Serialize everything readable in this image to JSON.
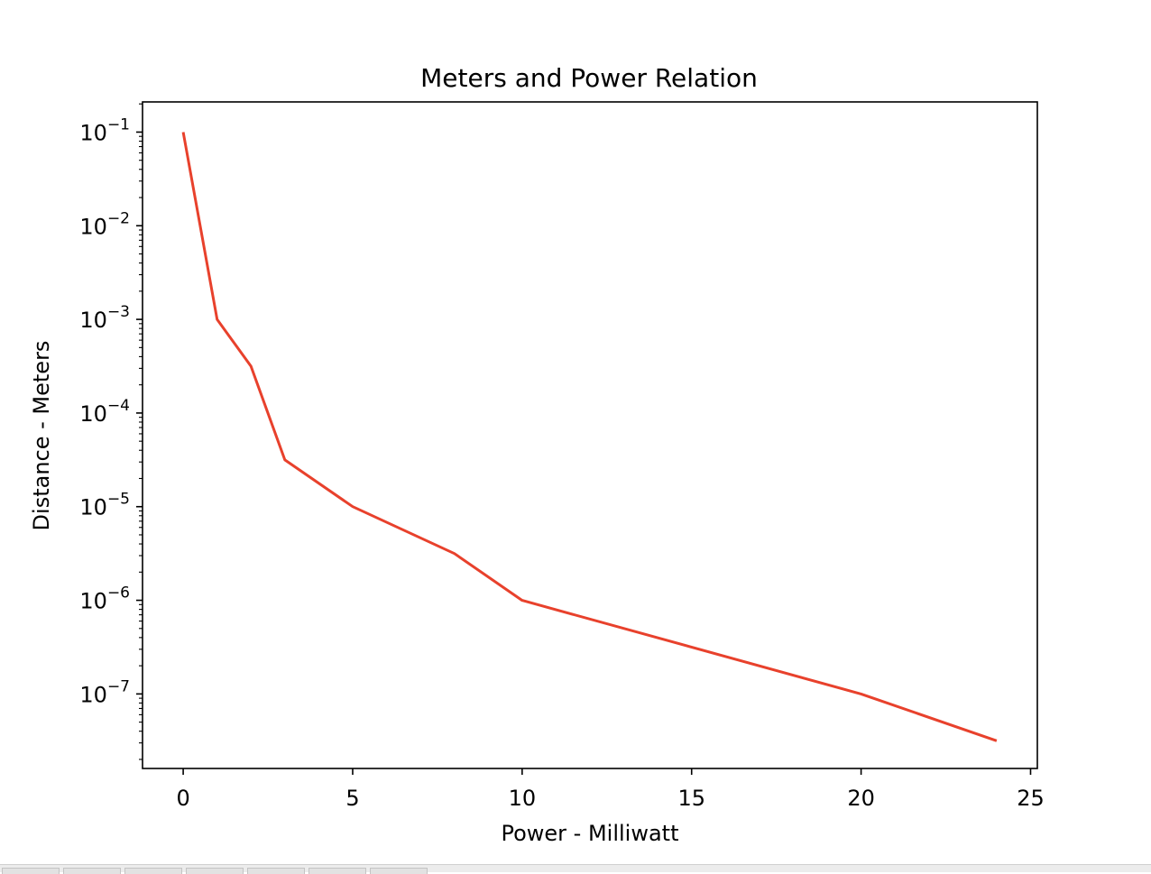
{
  "chart_data": {
    "type": "line",
    "title": "Meters and Power Relation",
    "xlabel": "Power - Milliwatt",
    "ylabel": "Distance - Meters",
    "xlim": [
      -1.2,
      25.2
    ],
    "ylim": [
      1.6e-08,
      0.21
    ],
    "yscale": "log",
    "xticks": [
      0,
      5,
      10,
      15,
      20,
      25
    ],
    "xtick_labels": [
      "0",
      "5",
      "10",
      "15",
      "20",
      "25"
    ],
    "yticks": [
      1e-07,
      1e-06,
      1e-05,
      0.0001,
      0.001,
      0.01,
      0.1
    ],
    "ytick_base": "10",
    "ytick_exponents": [
      "−7",
      "−6",
      "−5",
      "−4",
      "−3",
      "−2",
      "−1"
    ],
    "grid": false,
    "series": [
      {
        "color": "#e8412c",
        "x": [
          0,
          1,
          2,
          3,
          5,
          8,
          10,
          20,
          24
        ],
        "y": [
          0.1,
          0.001,
          0.000316,
          3.16e-05,
          1e-05,
          3.16e-06,
          1e-06,
          1e-07,
          3.16e-08
        ]
      }
    ]
  }
}
